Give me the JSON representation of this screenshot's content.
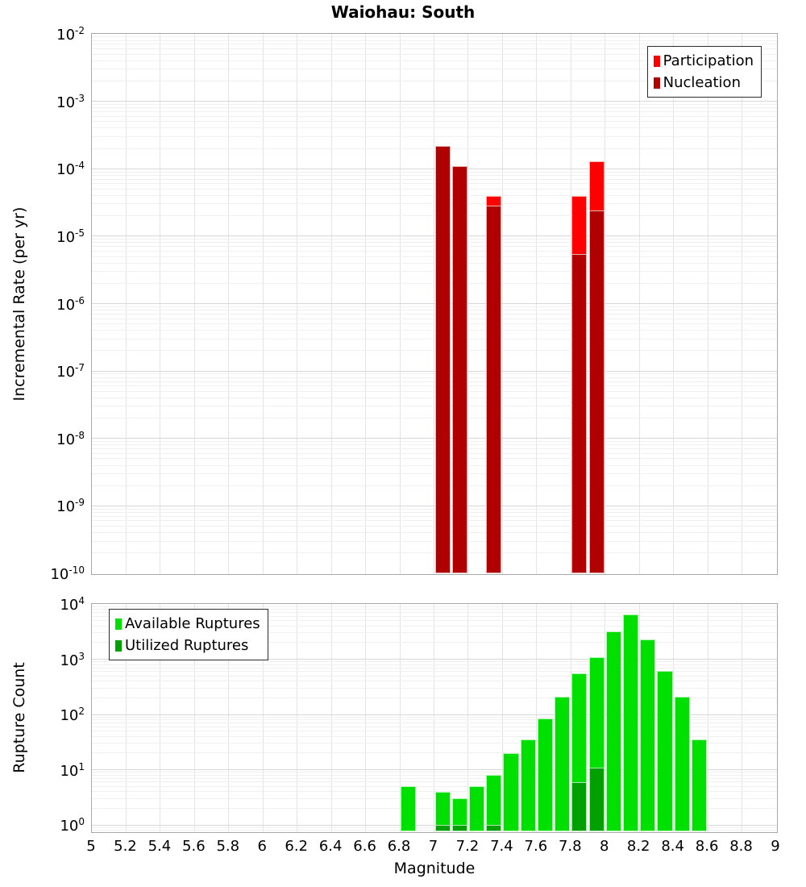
{
  "title": "Waiohau: South",
  "chart_data": [
    {
      "type": "bar",
      "title": "Waiohau: South",
      "ylabel": "Incremental Rate (per yr)",
      "yscale": "log",
      "ylim": [
        1e-10,
        0.01
      ],
      "xlim": [
        5,
        9
      ],
      "bin_width": 0.1,
      "grid": true,
      "legend_position": "upper-right",
      "ytick_exponents": [
        -2,
        -3,
        -4,
        -5,
        -6,
        -7,
        -8,
        -9,
        -10
      ],
      "xticks": [
        5,
        5.2,
        5.4,
        5.6,
        5.8,
        6,
        6.2,
        6.4,
        6.6,
        6.8,
        7,
        7.2,
        7.4,
        7.6,
        7.8,
        8,
        8.2,
        8.4,
        8.6,
        8.8,
        9
      ],
      "show_xtick_labels": false,
      "series": [
        {
          "name": "Participation",
          "color": "#ff0000",
          "data": [
            [
              7.05,
              0.00022
            ],
            [
              7.15,
              0.00011
            ],
            [
              7.35,
              4e-05
            ],
            [
              7.85,
              4e-05
            ],
            [
              7.95,
              0.00013
            ]
          ]
        },
        {
          "name": "Nucleation",
          "color": "#b00000",
          "data": [
            [
              7.05,
              0.00022
            ],
            [
              7.15,
              0.00011
            ],
            [
              7.35,
              2.8e-05
            ],
            [
              7.85,
              5.5e-06
            ],
            [
              7.95,
              2.4e-05
            ]
          ]
        }
      ]
    },
    {
      "type": "bar",
      "ylabel": "Rupture Count",
      "xlabel": "Magnitude",
      "yscale": "log",
      "ylim": [
        1,
        10000
      ],
      "xlim": [
        5,
        9
      ],
      "bin_width": 0.1,
      "grid": true,
      "legend_position": "upper-left",
      "ytick_exponents": [
        4,
        3,
        2,
        1,
        0
      ],
      "xticks": [
        5,
        5.2,
        5.4,
        5.6,
        5.8,
        6,
        6.2,
        6.4,
        6.6,
        6.8,
        7,
        7.2,
        7.4,
        7.6,
        7.8,
        8,
        8.2,
        8.4,
        8.6,
        8.8,
        9
      ],
      "show_xtick_labels": true,
      "series": [
        {
          "name": "Available Ruptures",
          "color": "#00e000",
          "data": [
            [
              6.85,
              5
            ],
            [
              7.05,
              4
            ],
            [
              7.15,
              3
            ],
            [
              7.25,
              5
            ],
            [
              7.35,
              8
            ],
            [
              7.45,
              20
            ],
            [
              7.55,
              35
            ],
            [
              7.65,
              85
            ],
            [
              7.75,
              210
            ],
            [
              7.85,
              550
            ],
            [
              7.95,
              1100
            ],
            [
              8.05,
              3200
            ],
            [
              8.15,
              6500
            ],
            [
              8.25,
              2300
            ],
            [
              8.35,
              620
            ],
            [
              8.45,
              210
            ],
            [
              8.55,
              35
            ]
          ]
        },
        {
          "name": "Utilized Ruptures",
          "color": "#00a000",
          "data": [
            [
              7.05,
              1
            ],
            [
              7.15,
              1
            ],
            [
              7.35,
              1
            ],
            [
              7.85,
              6
            ],
            [
              7.95,
              11
            ]
          ]
        }
      ]
    }
  ]
}
